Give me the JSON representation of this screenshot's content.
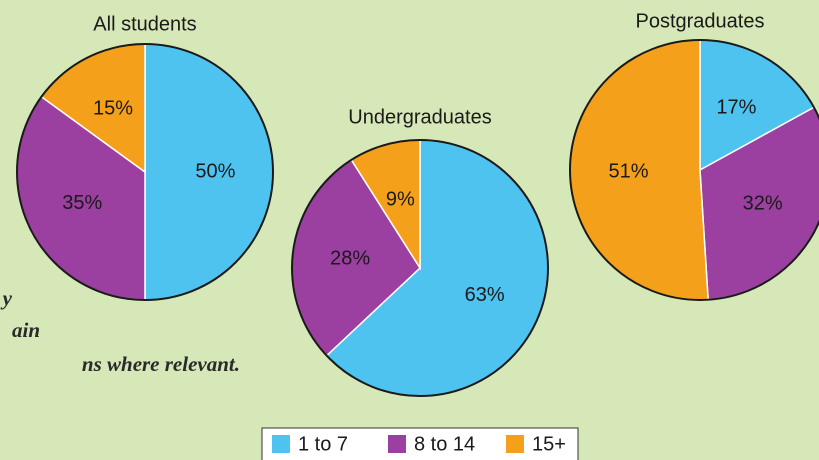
{
  "chart_data": [
    {
      "type": "pie",
      "title": "All students",
      "categories": [
        "1 to 7",
        "8 to 14",
        "15+"
      ],
      "values": [
        50,
        35,
        15
      ],
      "value_labels": [
        "50%",
        "35%",
        "15%"
      ],
      "colors": [
        "#4fc3f0",
        "#9b3fa0",
        "#f5a01a"
      ]
    },
    {
      "type": "pie",
      "title": "Undergraduates",
      "categories": [
        "1 to 7",
        "8 to 14",
        "15+"
      ],
      "values": [
        63,
        28,
        9
      ],
      "value_labels": [
        "63%",
        "28%",
        "9%"
      ],
      "colors": [
        "#4fc3f0",
        "#9b3fa0",
        "#f5a01a"
      ]
    },
    {
      "type": "pie",
      "title": "Postgraduates",
      "categories": [
        "1 to 7",
        "8 to 14",
        "15+"
      ],
      "values": [
        17,
        32,
        51
      ],
      "value_labels": [
        "17%",
        "32%",
        "51%"
      ],
      "colors": [
        "#4fc3f0",
        "#9b3fa0",
        "#f5a01a"
      ]
    }
  ],
  "side_text": [
    "y",
    "ain",
    "ns where relevant."
  ]
}
